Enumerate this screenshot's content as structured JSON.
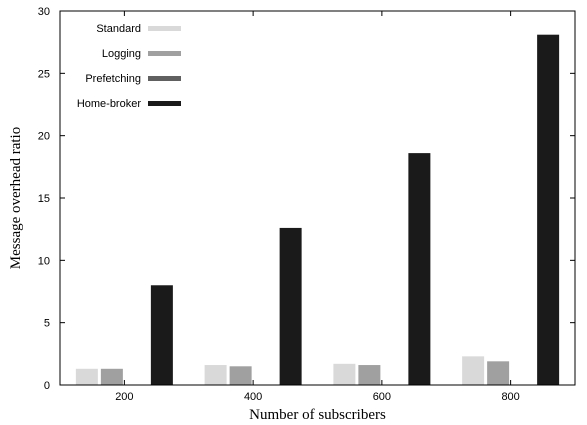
{
  "chart_data": {
    "type": "bar",
    "title": "",
    "xlabel": "Number of subscribers",
    "ylabel": "Message overhead ratio",
    "categories": [
      "200",
      "400",
      "600",
      "800"
    ],
    "ylim": [
      0,
      30
    ],
    "yticks": [
      0,
      5,
      10,
      15,
      20,
      25,
      30
    ],
    "grid": false,
    "legend": "top-left",
    "series": [
      {
        "name": "Standard",
        "color": "#d9d9d9",
        "values": [
          1.3,
          1.6,
          1.7,
          2.3
        ]
      },
      {
        "name": "Logging",
        "color": "#a0a0a0",
        "values": [
          1.3,
          1.5,
          1.6,
          1.9
        ]
      },
      {
        "name": "Prefetching",
        "color": "#606060",
        "values": [
          0,
          0,
          0,
          0
        ]
      },
      {
        "name": "Home-broker",
        "color": "#1a1a1a",
        "values": [
          8.0,
          12.6,
          18.6,
          28.1
        ]
      }
    ]
  }
}
